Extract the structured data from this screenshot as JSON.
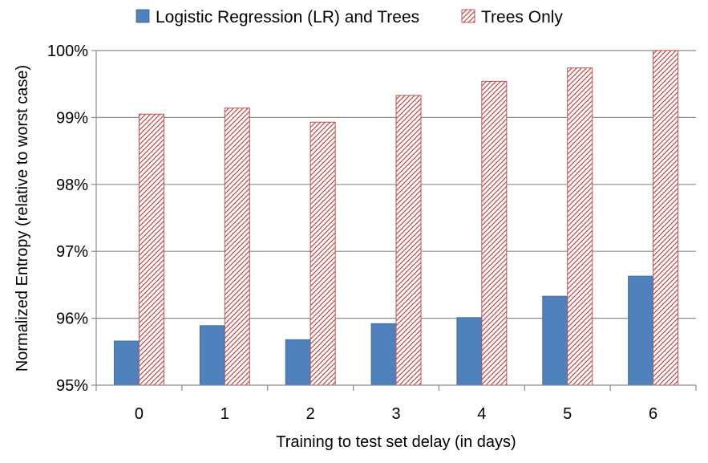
{
  "chart_data": {
    "type": "bar",
    "title": "",
    "xlabel": "Training to test set delay (in days)",
    "ylabel": "Normalized Entropy (relative to worst case)",
    "categories": [
      "0",
      "1",
      "2",
      "3",
      "4",
      "5",
      "6"
    ],
    "ylim": [
      95,
      100
    ],
    "yticks": [
      95,
      96,
      97,
      98,
      99,
      100
    ],
    "ytick_labels": [
      "95%",
      "96%",
      "97%",
      "98%",
      "99%",
      "100%"
    ],
    "grid": true,
    "legend_position": "top",
    "series": [
      {
        "name": "Logistic Regression (LR) and Trees",
        "color": "#4f81bd",
        "fill": "solid",
        "values": [
          95.66,
          95.89,
          95.68,
          95.92,
          96.01,
          96.33,
          96.63
        ]
      },
      {
        "name": "Trees Only",
        "color": "#c0504d",
        "fill": "hatched",
        "values": [
          99.05,
          99.14,
          98.93,
          99.33,
          99.54,
          99.74,
          100.0
        ]
      }
    ]
  }
}
